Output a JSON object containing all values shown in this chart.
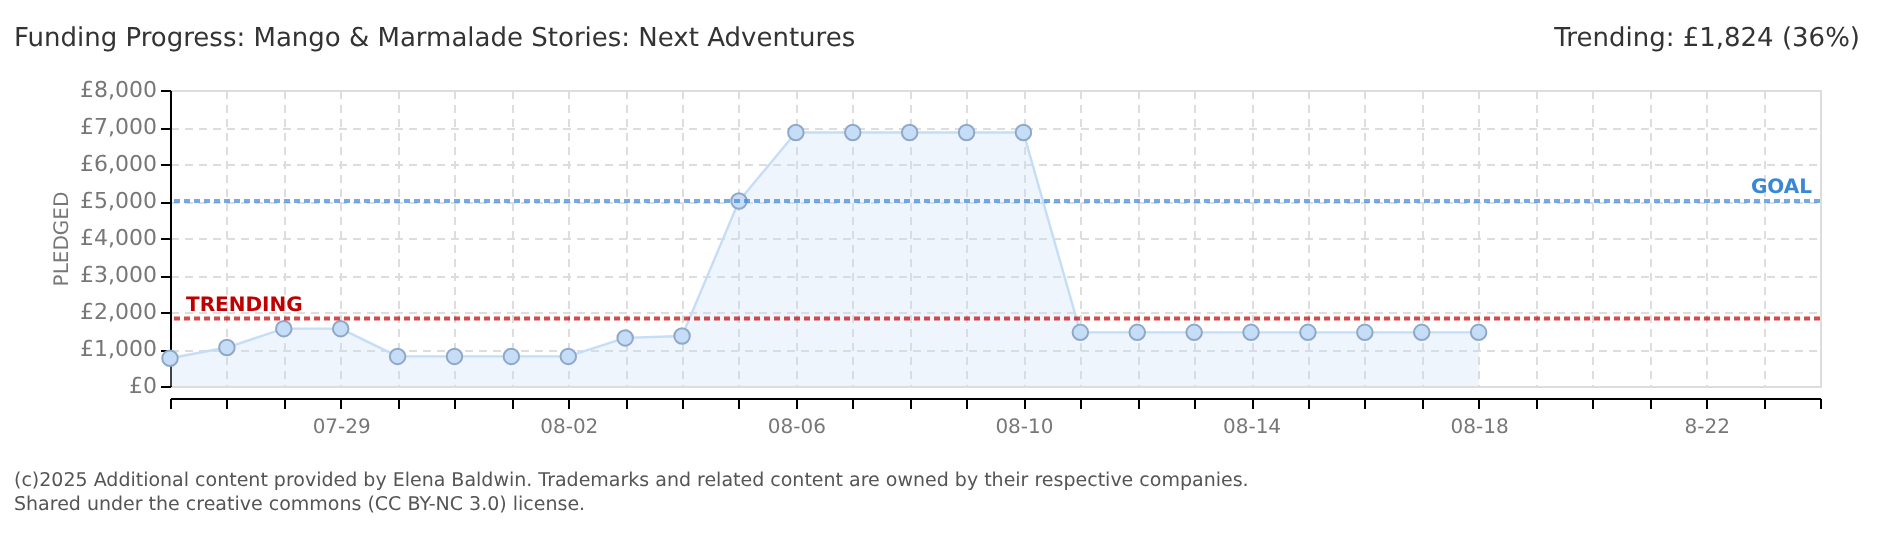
{
  "chart_data": {
    "type": "area",
    "title": "Funding Progress: Mango & Marmalade Stories: Next Adventures",
    "ylabel": "PLEDGED",
    "annotations": [
      "Trending:  £1,824 (36%)",
      "(c)2025 Additional content provided by Elena Baldwin. Trademarks and related content are owned by their respective companies.",
      "Shared under the creative commons (CC BY-NC 3.0) license."
    ],
    "x": [
      "2025-07-26",
      "2025-07-27",
      "2025-07-28",
      "2025-07-29",
      "2025-07-30",
      "2025-07-31",
      "2025-08-01",
      "2025-08-02",
      "2025-08-03",
      "2025-08-04",
      "2025-08-05",
      "2025-08-06",
      "2025-08-07",
      "2025-08-08",
      "2025-08-09",
      "2025-08-10",
      "2025-08-11",
      "2025-08-12",
      "2025-08-13",
      "2025-08-14",
      "2025-08-15",
      "2025-08-16",
      "2025-08-17",
      "2025-08-18"
    ],
    "series": [
      {
        "color": "#c6ddf7",
        "values": [
          750,
          1040,
          1550,
          1550,
          800,
          800,
          800,
          800,
          1300,
          1350,
          5000,
          6850,
          6850,
          6850,
          6850,
          6850,
          1450,
          1450,
          1450,
          1450,
          1450,
          1450,
          1450,
          1450
        ]
      }
    ],
    "xlim": [
      "2025-07-26",
      "2025-08-24"
    ],
    "xticks": [
      {
        "value": "2025-07-26",
        "label": null
      },
      {
        "value": "2025-07-27",
        "label": null
      },
      {
        "value": "2025-07-28",
        "label": null
      },
      {
        "value": "2025-07-29",
        "label": "07-29"
      },
      {
        "value": "2025-07-30",
        "label": null
      },
      {
        "value": "2025-07-31",
        "label": null
      },
      {
        "value": "2025-08-01",
        "label": null
      },
      {
        "value": "2025-08-02",
        "label": "08-02"
      },
      {
        "value": "2025-08-03",
        "label": null
      },
      {
        "value": "2025-08-04",
        "label": null
      },
      {
        "value": "2025-08-05",
        "label": null
      },
      {
        "value": "2025-08-06",
        "label": "08-06"
      },
      {
        "value": "2025-08-07",
        "label": null
      },
      {
        "value": "2025-08-08",
        "label": null
      },
      {
        "value": "2025-08-09",
        "label": null
      },
      {
        "value": "2025-08-10",
        "label": "08-10"
      },
      {
        "value": "2025-08-11",
        "label": null
      },
      {
        "value": "2025-08-12",
        "label": null
      },
      {
        "value": "2025-08-13",
        "label": null
      },
      {
        "value": "2025-08-14",
        "label": "08-14"
      },
      {
        "value": "2025-08-15",
        "label": null
      },
      {
        "value": "2025-08-16",
        "label": null
      },
      {
        "value": "2025-08-17",
        "label": null
      },
      {
        "value": "2025-08-18",
        "label": "08-18"
      },
      {
        "value": "2025-08-19",
        "label": null
      },
      {
        "value": "2025-08-20",
        "label": null
      },
      {
        "value": "2025-08-21",
        "label": null
      },
      {
        "value": "2025-08-22",
        "label": "8-22"
      },
      {
        "value": "2025-08-23",
        "label": null
      },
      {
        "value": "2025-08-24",
        "label": null
      }
    ],
    "ylim": [
      0,
      8000
    ],
    "yticks": [
      {
        "value": 0,
        "label": "£0"
      },
      {
        "value": 1000,
        "label": "£1,000"
      },
      {
        "value": 2000,
        "label": "£2,000"
      },
      {
        "value": 3000,
        "label": "£3,000"
      },
      {
        "value": 4000,
        "label": "£4,000"
      },
      {
        "value": 5000,
        "label": "£5,000"
      },
      {
        "value": 6000,
        "label": "£6,000"
      },
      {
        "value": 7000,
        "label": "£7,000"
      },
      {
        "value": 8000,
        "label": "£8,000"
      }
    ],
    "ref_lines": [
      {
        "axis": "y",
        "value": 5000,
        "label": "GOAL",
        "color": "#3a87d6",
        "line_style": "dotted"
      },
      {
        "axis": "y",
        "value": 1824,
        "label": "TRENDING",
        "color": "#c00000",
        "line_style": "dotted"
      }
    ],
    "grid": true,
    "marker": "circle",
    "line_style": "solid"
  }
}
